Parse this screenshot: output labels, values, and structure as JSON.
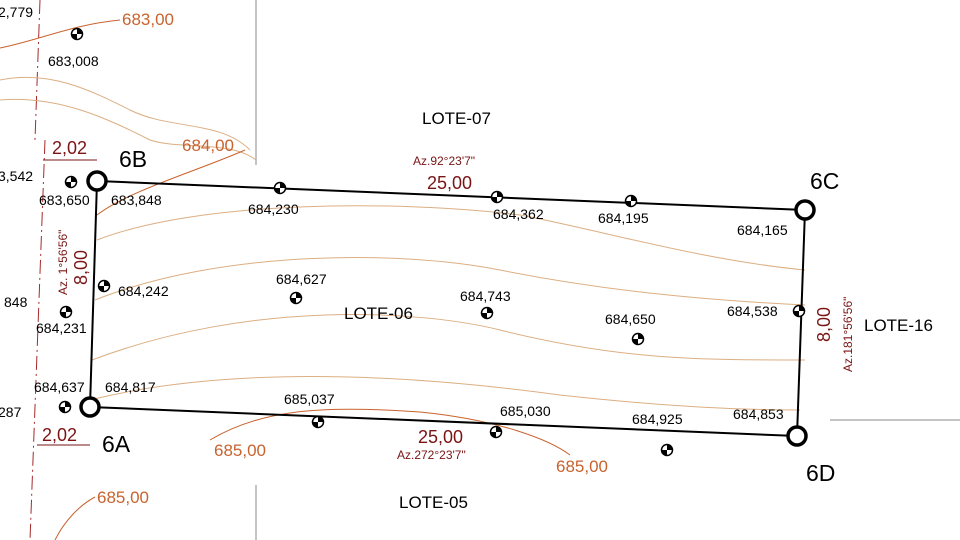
{
  "lots": [
    "LOTE-07",
    "LOTE-06",
    "LOTE-16",
    "LOTE-05"
  ],
  "vertices": [
    "6A",
    "6B",
    "6C",
    "6D"
  ],
  "sides": {
    "north": {
      "length": "25,00",
      "azimuth": "Az.92°23'7\""
    },
    "east": {
      "length": "8,00",
      "azimuth": "Az.181°56'56\""
    },
    "south": {
      "length": "25,00",
      "azimuth": "Az.272°23'7\""
    },
    "west": {
      "length": "8,00",
      "azimuth": "Az. 1°56'56\""
    }
  },
  "offsets": [
    "2,02",
    "2,02"
  ],
  "contours": [
    "683,00",
    "684,00",
    "685,00",
    "685,00",
    "685,00"
  ],
  "elevations": [
    "2,779",
    "683,008",
    "3,542",
    "683,650",
    "683,848",
    "684,230",
    "684,362",
    "684,195",
    "684,165",
    "684,242",
    "848",
    "684,231",
    "684,627",
    "684,743",
    "684,650",
    "684,538",
    "684,637",
    "684,817",
    "287",
    "685,037",
    "685,030",
    "684,925",
    "684,853"
  ]
}
